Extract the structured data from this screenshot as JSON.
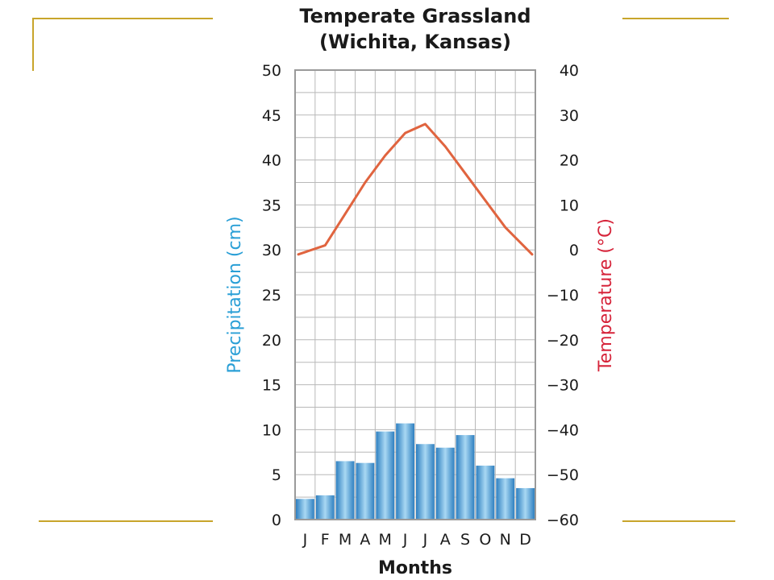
{
  "colors": {
    "decor": "#c8a52b",
    "bar_dark": "#2e7fc0",
    "bar_light": "#a9d8f3",
    "temperature_line": "#e0643f",
    "grid": "#b8b8b8",
    "plot_border": "#9a9a9a",
    "precip_label": "#2a9fd6",
    "temp_label": "#d6243a"
  },
  "chart_data": {
    "type": "bar",
    "title": "Temperate Grassland",
    "subtitle": "(Wichita, Kansas)",
    "xlabel": "Months",
    "ylabel": "Precipitation (cm)",
    "y2label": "Temperature (°C)",
    "categories": [
      "J",
      "F",
      "M",
      "A",
      "M",
      "J",
      "J",
      "A",
      "S",
      "O",
      "N",
      "D"
    ],
    "ylim": [
      0,
      50
    ],
    "y2lim": [
      -60,
      40
    ],
    "yticks": [
      "0",
      "5",
      "10",
      "15",
      "20",
      "25",
      "30",
      "35",
      "40",
      "45",
      "50"
    ],
    "y2ticks": [
      "−60",
      "−50",
      "−40",
      "−30",
      "−20",
      "−10",
      "0",
      "10",
      "20",
      "30",
      "40"
    ],
    "grid": true,
    "series": [
      {
        "type": "bar",
        "axis": "left",
        "values": [
          2.3,
          2.7,
          6.5,
          6.3,
          9.8,
          10.7,
          8.4,
          8.0,
          9.4,
          6.0,
          4.6,
          3.5
        ]
      },
      {
        "type": "line",
        "axis": "right",
        "values": [
          -1,
          1,
          8,
          15,
          21,
          26,
          28,
          23,
          17,
          11,
          5,
          -1
        ]
      }
    ]
  }
}
